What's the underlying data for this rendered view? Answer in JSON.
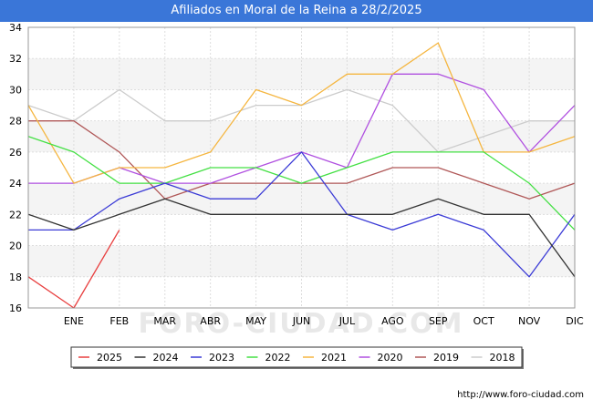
{
  "chart_data": {
    "type": "line",
    "title": "Afiliados en Moral de la Reina a 28/2/2025",
    "categories": [
      "",
      "ENE",
      "FEB",
      "MAR",
      "ABR",
      "MAY",
      "JUN",
      "JUL",
      "AGO",
      "SEP",
      "OCT",
      "NOV",
      "DIC"
    ],
    "ylim": [
      16,
      34
    ],
    "yticks": [
      16,
      18,
      20,
      22,
      24,
      26,
      28,
      30,
      32,
      34
    ],
    "grid": true,
    "legend_position": "bottom",
    "series": [
      {
        "name": "2025",
        "color": "#e84040",
        "values": [
          18,
          16,
          21,
          null,
          null,
          null,
          null,
          null,
          null,
          null,
          null,
          null,
          null
        ]
      },
      {
        "name": "2024",
        "color": "#333333",
        "values": [
          22,
          21,
          22,
          23,
          22,
          22,
          22,
          22,
          22,
          23,
          22,
          22,
          18
        ]
      },
      {
        "name": "2023",
        "color": "#3b3bd6",
        "values": [
          21,
          21,
          23,
          24,
          23,
          23,
          26,
          22,
          21,
          22,
          21,
          18,
          22
        ]
      },
      {
        "name": "2022",
        "color": "#44e044",
        "values": [
          27,
          26,
          24,
          24,
          25,
          25,
          24,
          25,
          26,
          26,
          26,
          24,
          21
        ]
      },
      {
        "name": "2021",
        "color": "#f5b640",
        "values": [
          29,
          24,
          25,
          25,
          26,
          30,
          29,
          31,
          31,
          33,
          26,
          26,
          27
        ]
      },
      {
        "name": "2020",
        "color": "#b050e0",
        "values": [
          24,
          24,
          25,
          24,
          24,
          25,
          26,
          25,
          31,
          31,
          30,
          26,
          29
        ]
      },
      {
        "name": "2019",
        "color": "#b05858",
        "values": [
          28,
          28,
          26,
          23,
          24,
          24,
          24,
          24,
          25,
          25,
          24,
          23,
          24
        ]
      },
      {
        "name": "2018",
        "color": "#cccccc",
        "values": [
          29,
          28,
          30,
          28,
          28,
          29,
          29,
          30,
          29,
          26,
          27,
          28,
          28
        ]
      }
    ]
  },
  "watermark": "FORO-CIUDAD.COM",
  "footer_url": "http://www.foro-ciudad.com"
}
